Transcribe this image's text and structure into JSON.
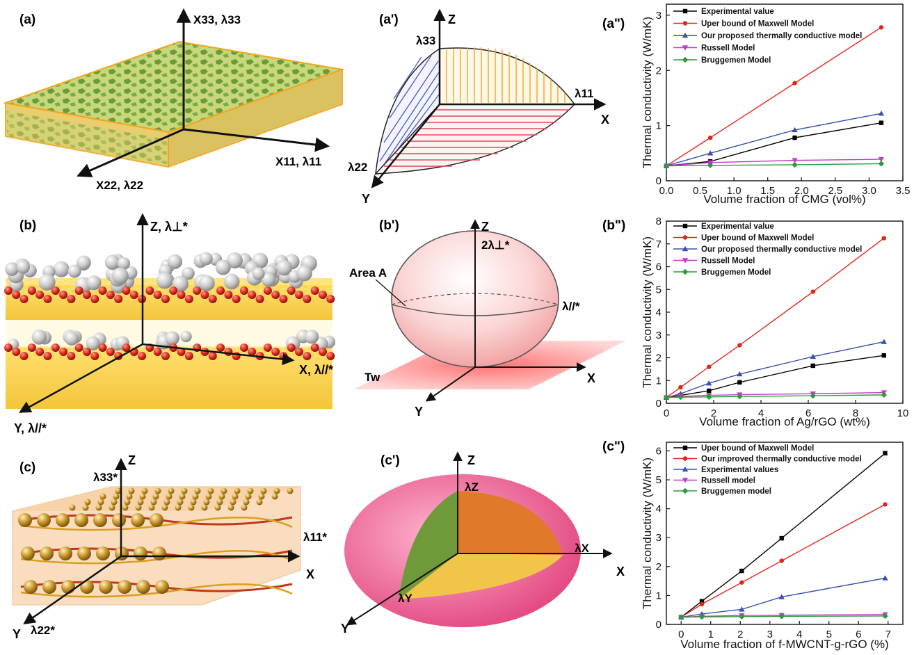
{
  "panel_labels": {
    "a": "(a)",
    "a1": "(a')",
    "a2": "(a\")",
    "b": "(b)",
    "b1": "(b')",
    "b2": "(b\")",
    "c": "(c)",
    "c1": "(c')",
    "c2": "(c\")"
  },
  "panel_a": {
    "axis_x33": "X33, λ33",
    "axis_x11": "X11, λ11",
    "axis_x22": "X22, λ22"
  },
  "panel_a1": {
    "z": "Z",
    "x": "X",
    "y": "Y",
    "l33": "λ33",
    "l11": "λ11",
    "l22": "λ22"
  },
  "panel_b": {
    "z": "Z, λ⊥*",
    "x": "X, λ//*",
    "y": "Y, λ//*"
  },
  "panel_b1": {
    "z": "Z",
    "x": "X",
    "y": "Y",
    "perp": "2λ⊥*",
    "par": "λ//*",
    "area": "Area A",
    "tw": "Tw"
  },
  "panel_c": {
    "z": "Z",
    "x": "X",
    "y": "Y",
    "l33": "λ33*",
    "l11": "λ11*",
    "l22": "λ22*"
  },
  "panel_c1": {
    "z": "Z",
    "x": "X",
    "y": "Y",
    "lz": "λZ",
    "lx": "λX",
    "ly": "λY"
  },
  "colors": {
    "experimental": "#000000",
    "maxwell": "#e3241b",
    "proposed": "#3a4fb0",
    "russell": "#c040c0",
    "bruggemen": "#2a9a3a"
  },
  "chart_data": [
    {
      "type": "line",
      "panel": "(a\")",
      "xlabel": "Volume fraction of CMG (vol%)",
      "ylabel": "Thermal conductivity (W/mK)",
      "xlim": [
        0,
        3.5
      ],
      "ylim": [
        0,
        3.2
      ],
      "xticks": [
        0.0,
        0.5,
        1.0,
        1.5,
        2.0,
        2.5,
        3.0,
        3.5
      ],
      "xticklabels": [
        "0.0",
        "0.5",
        "1.0",
        "1.5",
        "2.0",
        "2.5",
        "3.0",
        "3.5"
      ],
      "yticks": [
        0,
        1,
        2,
        3
      ],
      "yticklabels": [
        "0",
        "1",
        "2",
        "3"
      ],
      "x": [
        0,
        0.65,
        1.9,
        3.18
      ],
      "legend_position": "top-left",
      "series": [
        {
          "name": "Experimental value",
          "marker": "square",
          "color": "#000000",
          "values": [
            0.27,
            0.35,
            0.78,
            1.05
          ]
        },
        {
          "name": "Uper bound of Maxwell Model",
          "marker": "circle",
          "color": "#e3241b",
          "values": [
            0.27,
            0.78,
            1.77,
            2.78
          ]
        },
        {
          "name": "Our proposed thermally conductive model",
          "marker": "triangle-up",
          "color": "#3a4fb0",
          "values": [
            0.27,
            0.5,
            0.92,
            1.22
          ]
        },
        {
          "name": "Russell Model",
          "marker": "triangle-down",
          "color": "#c040c0",
          "values": [
            0.27,
            0.33,
            0.37,
            0.39
          ]
        },
        {
          "name": "Bruggemen Model",
          "marker": "diamond",
          "color": "#2a9a3a",
          "values": [
            0.27,
            0.28,
            0.29,
            0.31
          ]
        }
      ]
    },
    {
      "type": "line",
      "panel": "(b\")",
      "xlabel": "Volume fraction of Ag/rGO (wt%)",
      "ylabel": "Thermal conductivity (W/mK)",
      "xlim": [
        0,
        10
      ],
      "ylim": [
        0,
        8
      ],
      "xticks": [
        0,
        2,
        4,
        6,
        8,
        10
      ],
      "xticklabels": [
        "0",
        "2",
        "4",
        "6",
        "8",
        "10"
      ],
      "yticks": [
        0,
        1,
        2,
        3,
        4,
        5,
        6,
        7,
        8
      ],
      "yticklabels": [
        "0",
        "1",
        "2",
        "3",
        "4",
        "5",
        "6",
        "7",
        "8"
      ],
      "x": [
        0,
        0.6,
        1.8,
        3.1,
        6.2,
        9.2
      ],
      "legend_position": "top-left",
      "series": [
        {
          "name": "Experimental value",
          "marker": "square",
          "color": "#000000",
          "values": [
            0.25,
            0.35,
            0.55,
            0.92,
            1.65,
            2.1
          ]
        },
        {
          "name": "Uper bound of Maxwell Model",
          "marker": "circle",
          "color": "#e3241b",
          "values": [
            0.25,
            0.7,
            1.6,
            2.55,
            4.9,
            7.25
          ]
        },
        {
          "name": "Our proposed thermally conductive model",
          "marker": "triangle-up",
          "color": "#3a4fb0",
          "values": [
            0.25,
            0.42,
            0.88,
            1.28,
            2.05,
            2.7
          ]
        },
        {
          "name": "Russell Model",
          "marker": "triangle-down",
          "color": "#c040c0",
          "values": [
            0.25,
            0.3,
            0.35,
            0.38,
            0.42,
            0.47
          ]
        },
        {
          "name": "Bruggemen Model",
          "marker": "diamond",
          "color": "#2a9a3a",
          "values": [
            0.25,
            0.27,
            0.28,
            0.3,
            0.33,
            0.37
          ]
        }
      ]
    },
    {
      "type": "line",
      "panel": "(c\")",
      "xlabel": "Volume fraction of f-MWCNT-g-rGO (%)",
      "ylabel": "Thermal conductivity (W/mK)",
      "xlim": [
        -0.5,
        7.5
      ],
      "ylim": [
        0,
        6.3
      ],
      "xticks": [
        0,
        1,
        2,
        3,
        4,
        5,
        6,
        7
      ],
      "xticklabels": [
        "0",
        "1",
        "2",
        "3",
        "4",
        "5",
        "6",
        "7"
      ],
      "yticks": [
        0,
        1,
        2,
        3,
        4,
        5,
        6
      ],
      "yticklabels": [
        "0",
        "1",
        "2",
        "3",
        "4",
        "5",
        "6"
      ],
      "x": [
        0,
        0.7,
        2.05,
        3.4,
        6.9
      ],
      "legend_position": "top-left",
      "series": [
        {
          "name": "Uper bound of Maxwell Model",
          "marker": "square",
          "color": "#000000",
          "values": [
            0.25,
            0.8,
            1.85,
            2.98,
            5.92
          ]
        },
        {
          "name": "Our improved thermally conductive model",
          "marker": "circle",
          "color": "#e3241b",
          "values": [
            0.25,
            0.7,
            1.45,
            2.2,
            4.15
          ]
        },
        {
          "name": "Experimental values",
          "marker": "triangle-up",
          "color": "#3a4fb0",
          "values": [
            0.25,
            0.36,
            0.52,
            0.95,
            1.6
          ]
        },
        {
          "name": "Russell model",
          "marker": "triangle-down",
          "color": "#c040c0",
          "values": [
            0.25,
            0.28,
            0.31,
            0.32,
            0.34
          ]
        },
        {
          "name": "Bruggemen model",
          "marker": "diamond",
          "color": "#2a9a3a",
          "values": [
            0.25,
            0.26,
            0.27,
            0.28,
            0.29
          ]
        }
      ]
    }
  ]
}
